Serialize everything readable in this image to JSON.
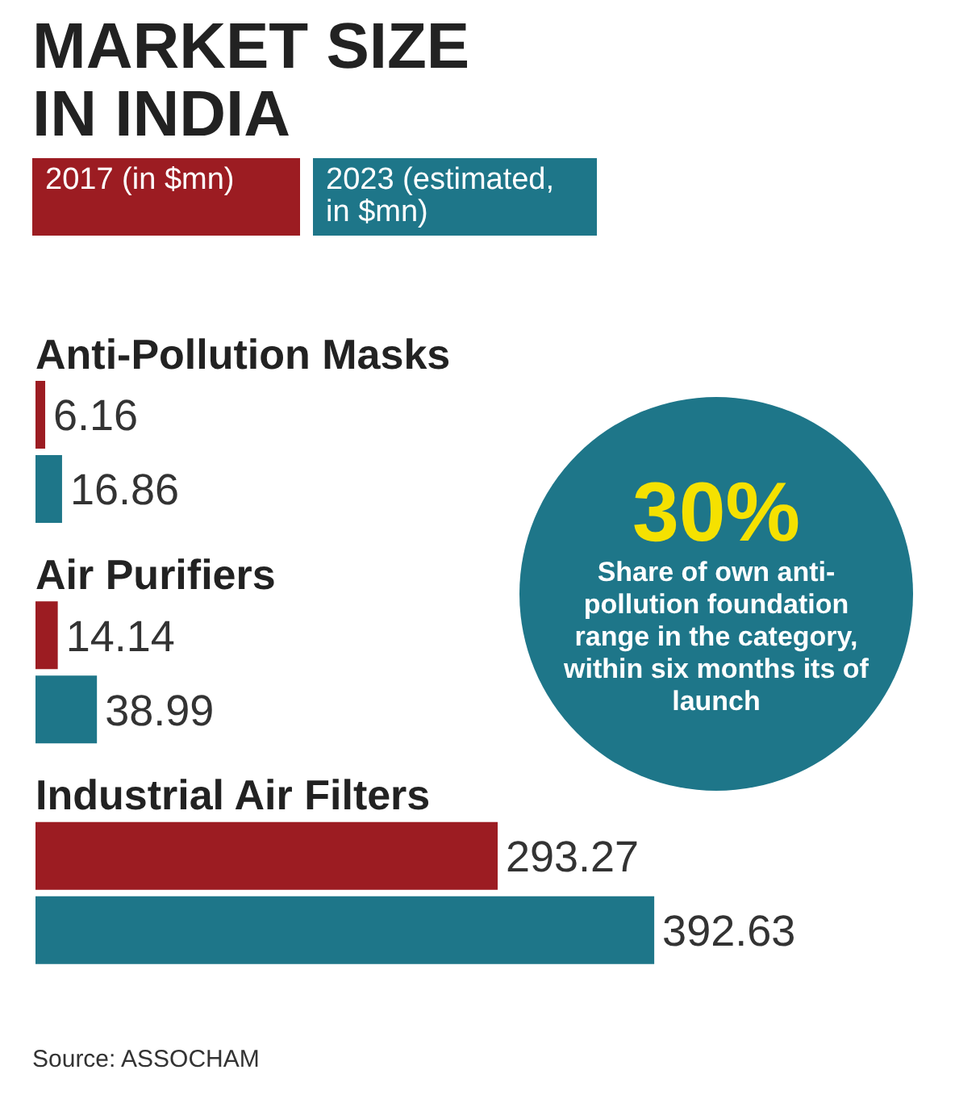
{
  "chart_data": {
    "type": "bar",
    "orientation": "horizontal",
    "title": "MARKET SIZE IN INDIA",
    "categories": [
      "Anti-Pollution Masks",
      "Air Purifiers",
      "Industrial Air Filters"
    ],
    "series": [
      {
        "name": "2017 (in $mn)",
        "color": "#9c1c22",
        "values": [
          6.16,
          14.14,
          293.27
        ]
      },
      {
        "name": "2023 (estimated, in $mn)",
        "color": "#1e7689",
        "values": [
          16.86,
          38.99,
          392.63
        ]
      }
    ],
    "data_labels": true,
    "legend": "top left",
    "annotations": [
      "30%",
      "Share of own anti-pollution foundation range in the category, within six months its of launch",
      "Source: ASSOCHAM"
    ]
  }
}
